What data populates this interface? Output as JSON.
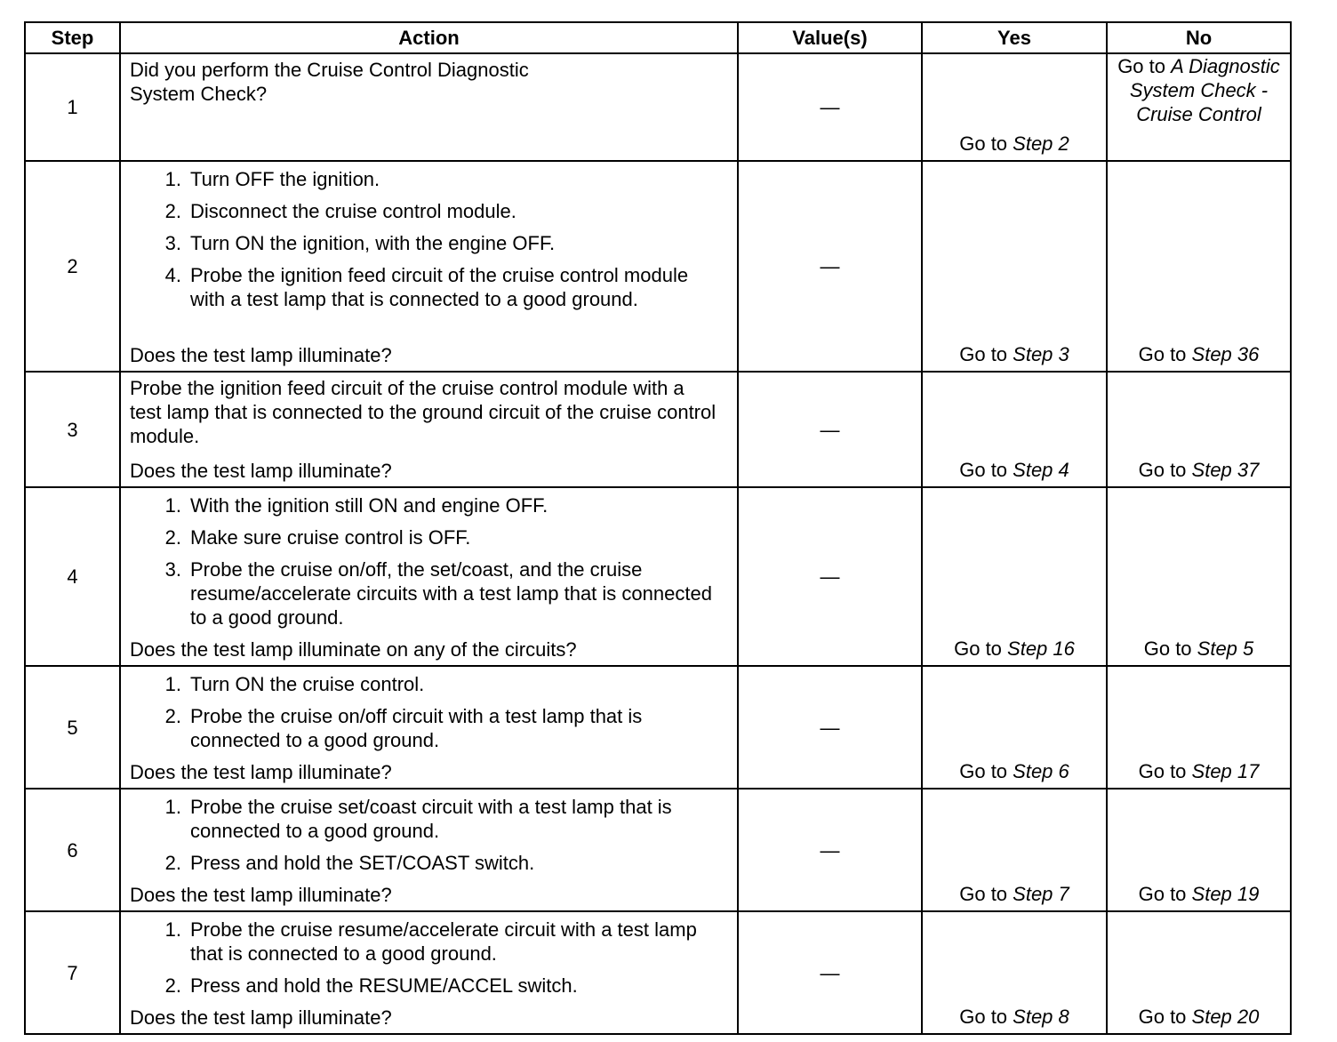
{
  "headers": {
    "step": "Step",
    "action": "Action",
    "values": "Value(s)",
    "yes": "Yes",
    "no": "No"
  },
  "rows": [
    {
      "step": "1",
      "intro": "Did you perform the Cruise Control Diagnostic System Check?",
      "items": [],
      "question": "",
      "value": "—",
      "yes": {
        "prefix": "Go to ",
        "target": "Step 2"
      },
      "no": {
        "prefix": "Go to ",
        "target": "A Diagnostic System Check - Cruise Control"
      }
    },
    {
      "step": "2",
      "intro": "",
      "items": [
        "Turn OFF the ignition.",
        "Disconnect the cruise control module.",
        "Turn ON the ignition, with the engine OFF.",
        "Probe the ignition feed circuit of the cruise control module with a test lamp that is connected to a good ground."
      ],
      "question": "Does the test lamp illuminate?",
      "value": "—",
      "yes": {
        "prefix": "Go to ",
        "target": "Step 3"
      },
      "no": {
        "prefix": "Go to ",
        "target": "Step 36"
      }
    },
    {
      "step": "3",
      "intro": "Probe the ignition feed circuit of the cruise control module with a test lamp that is connected to the ground circuit of the cruise control module.",
      "items": [],
      "question": "Does the test lamp illuminate?",
      "value": "—",
      "yes": {
        "prefix": "Go to ",
        "target": "Step 4"
      },
      "no": {
        "prefix": "Go to ",
        "target": "Step 37"
      }
    },
    {
      "step": "4",
      "intro": "",
      "items": [
        "With the ignition still ON and engine OFF.",
        "Make sure cruise control is OFF.",
        "Probe the cruise on/off, the set/coast, and the cruise resume/accelerate circuits with a test lamp that is connected to a good ground."
      ],
      "question": "Does the test lamp illuminate on any of the circuits?",
      "value": "—",
      "yes": {
        "prefix": "Go to ",
        "target": "Step 16"
      },
      "no": {
        "prefix": "Go to ",
        "target": "Step 5"
      }
    },
    {
      "step": "5",
      "intro": "",
      "items": [
        "Turn ON the cruise control.",
        "Probe the cruise on/off circuit with a test lamp that is connected to a good ground."
      ],
      "question": "Does the test lamp illuminate?",
      "value": "—",
      "yes": {
        "prefix": "Go to ",
        "target": "Step 6"
      },
      "no": {
        "prefix": "Go to ",
        "target": "Step 17"
      }
    },
    {
      "step": "6",
      "intro": "",
      "items": [
        "Probe the cruise set/coast circuit with a test lamp that is connected to a good ground.",
        "Press and hold the SET/COAST switch."
      ],
      "question": "Does the test lamp illuminate?",
      "value": "—",
      "yes": {
        "prefix": "Go to ",
        "target": "Step 7"
      },
      "no": {
        "prefix": "Go to ",
        "target": "Step 19"
      }
    },
    {
      "step": "7",
      "intro": "",
      "items": [
        "Probe the cruise resume/accelerate circuit with a test lamp that is connected to a good ground.",
        "Press and hold the RESUME/ACCEL switch."
      ],
      "question": "Does the test lamp illuminate?",
      "value": "—",
      "yes": {
        "prefix": "Go to ",
        "target": "Step 8"
      },
      "no": {
        "prefix": "Go to ",
        "target": "Step 20"
      }
    }
  ]
}
